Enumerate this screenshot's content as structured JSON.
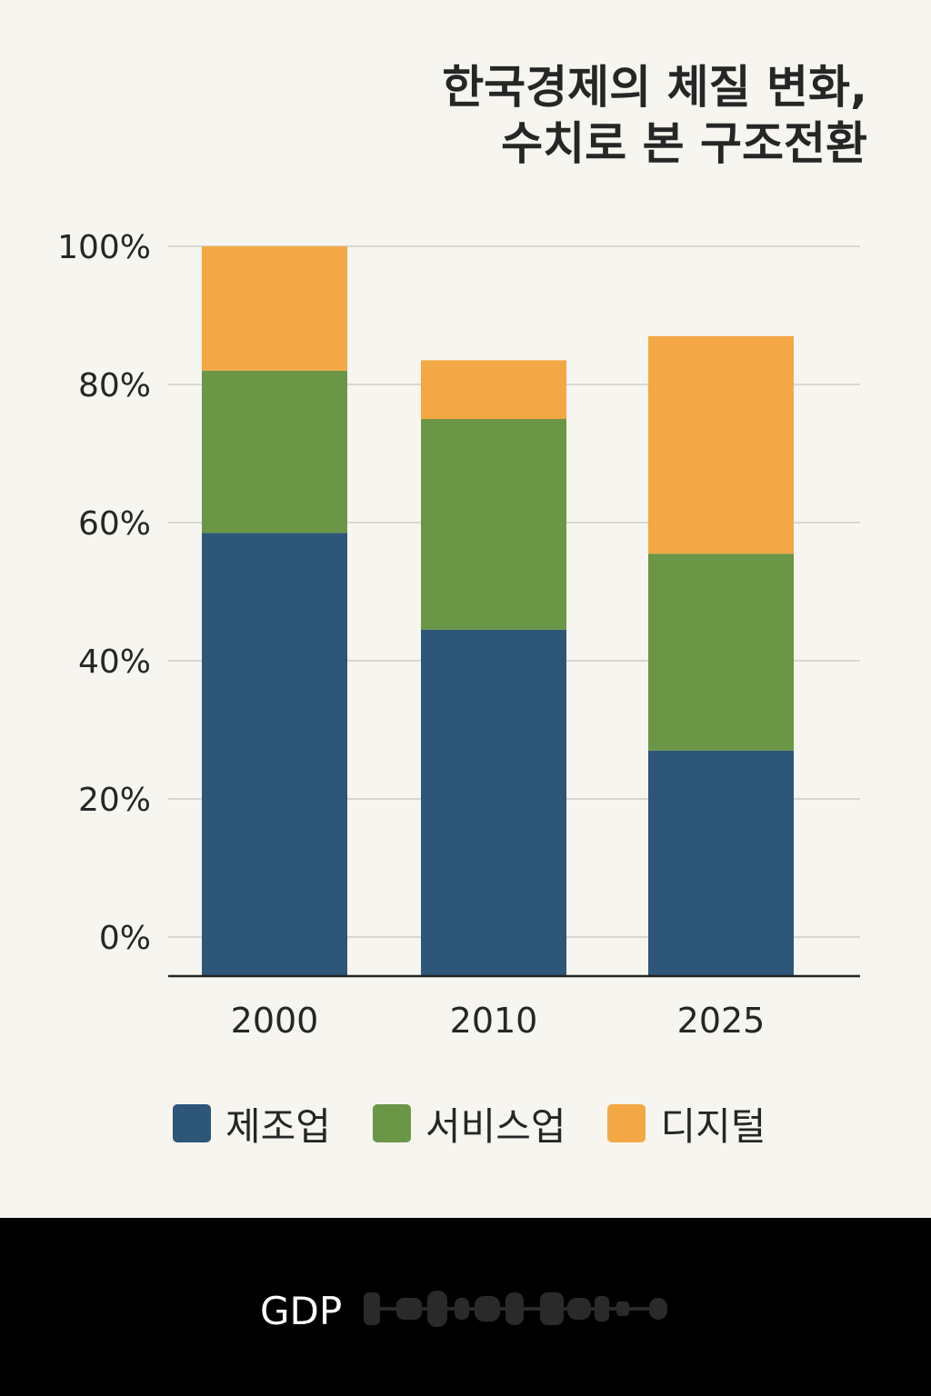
{
  "title_lines": [
    "한국경제의 체질 변화,",
    "수치로 본 구조전환"
  ],
  "colors": {
    "background": "#f7f5f0",
    "grid": "#cfcdc8",
    "axis": "#222222",
    "text": "#262626",
    "manufacturing": "#2d5679",
    "services": "#6b9646",
    "digital": "#f3a845"
  },
  "chart_data": {
    "type": "bar",
    "stacked": true,
    "title": "한국경제의 체질 변화, 수치로 본 구조전환",
    "categories": [
      "2000",
      "2010",
      "2025"
    ],
    "series": [
      {
        "name": "제조업",
        "values": [
          58.5,
          44.5,
          27.0
        ]
      },
      {
        "name": "서비스업",
        "values": [
          23.5,
          30.5,
          28.5
        ]
      },
      {
        "name": "디지털",
        "values": [
          18.0,
          8.5,
          31.5
        ]
      }
    ],
    "ylim": [
      0,
      100
    ],
    "yticks": [
      "100%",
      "80%",
      "60%",
      "40%",
      "20%",
      "0%"
    ],
    "grid": true,
    "legend": "bottom",
    "xlabel": "",
    "ylabel": ""
  },
  "legend": [
    {
      "label": "제조업",
      "color": "#2d5679"
    },
    {
      "label": "서비스업",
      "color": "#6b9646"
    },
    {
      "label": "디지털",
      "color": "#f3a845"
    }
  ],
  "footer": {
    "label": "GDP"
  }
}
